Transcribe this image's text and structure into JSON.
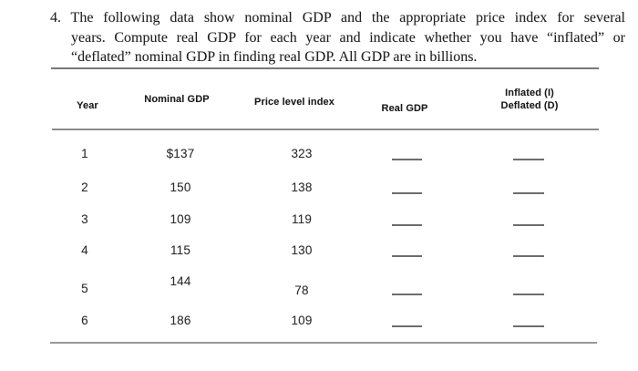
{
  "problem": {
    "number": "4.",
    "lines": [
      "4. The following data show nominal GDP and the appropriate price index for several",
      "years.  Compute real GDP for each year and indicate whether you have “inflated” or",
      "“deflated” nominal GDP in finding real GDP.  All GDP are in billions."
    ]
  },
  "table": {
    "headers": {
      "year": "Year",
      "nominal_gdp": "Nominal GDP",
      "price_level_index": "Price level index",
      "real_gdp": "Real GDP",
      "inflated_deflated": "Inflated (I)\nDeflated (D)"
    },
    "rows": [
      {
        "year": "1",
        "nominal_gdp": "$137",
        "price_level_index": "323",
        "real_gdp": "",
        "inflated_deflated": ""
      },
      {
        "year": "2",
        "nominal_gdp": "150",
        "price_level_index": "138",
        "real_gdp": "",
        "inflated_deflated": ""
      },
      {
        "year": "3",
        "nominal_gdp": "109",
        "price_level_index": "119",
        "real_gdp": "",
        "inflated_deflated": ""
      },
      {
        "year": "4",
        "nominal_gdp": "115",
        "price_level_index": "130",
        "real_gdp": "",
        "inflated_deflated": ""
      },
      {
        "year": "5",
        "nominal_gdp": "144",
        "price_level_index": "78",
        "real_gdp": "",
        "inflated_deflated": ""
      },
      {
        "year": "6",
        "nominal_gdp": "186",
        "price_level_index": "109",
        "real_gdp": "",
        "inflated_deflated": ""
      }
    ]
  },
  "palette": {
    "ink": "#2c2c2c",
    "rule_gray": "#8c8c8c",
    "background": "#ffffff"
  }
}
